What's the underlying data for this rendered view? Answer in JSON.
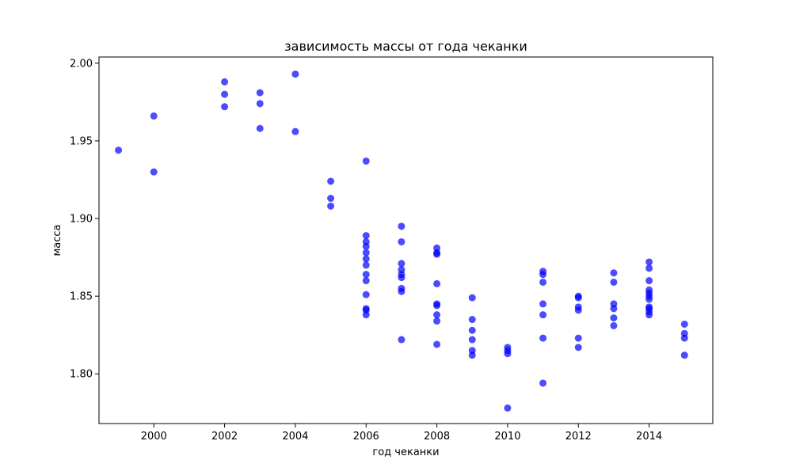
{
  "chart_data": {
    "type": "scatter",
    "title": "зависимость массы от года чеканки",
    "xlabel": "год чеканки",
    "ylabel": "масса",
    "xlim": [
      1998.45,
      2015.8
    ],
    "ylim": [
      1.768,
      2.004
    ],
    "grid": false,
    "xticks": [
      2000,
      2002,
      2004,
      2006,
      2008,
      2010,
      2012,
      2014
    ],
    "xtick_labels": [
      "2000",
      "2002",
      "2004",
      "2006",
      "2008",
      "2010",
      "2012",
      "2014"
    ],
    "yticks": [
      1.8,
      1.85,
      1.9,
      1.95,
      2.0
    ],
    "ytick_labels": [
      "1.80",
      "1.85",
      "1.90",
      "1.95",
      "2.00"
    ],
    "point_color": "#0000ff",
    "point_opacity": 0.7,
    "points": [
      {
        "x": 1999,
        "y": 1.944
      },
      {
        "x": 2000,
        "y": 1.966
      },
      {
        "x": 2000,
        "y": 1.93
      },
      {
        "x": 2002,
        "y": 1.988
      },
      {
        "x": 2002,
        "y": 1.98
      },
      {
        "x": 2002,
        "y": 1.972
      },
      {
        "x": 2003,
        "y": 1.981
      },
      {
        "x": 2003,
        "y": 1.974
      },
      {
        "x": 2003,
        "y": 1.958
      },
      {
        "x": 2004,
        "y": 1.993
      },
      {
        "x": 2004,
        "y": 1.956
      },
      {
        "x": 2005,
        "y": 1.924
      },
      {
        "x": 2005,
        "y": 1.913
      },
      {
        "x": 2005,
        "y": 1.908
      },
      {
        "x": 2006,
        "y": 1.937
      },
      {
        "x": 2006,
        "y": 1.889
      },
      {
        "x": 2006,
        "y": 1.885
      },
      {
        "x": 2006,
        "y": 1.882
      },
      {
        "x": 2006,
        "y": 1.878
      },
      {
        "x": 2006,
        "y": 1.874
      },
      {
        "x": 2006,
        "y": 1.87
      },
      {
        "x": 2006,
        "y": 1.864
      },
      {
        "x": 2006,
        "y": 1.86
      },
      {
        "x": 2006,
        "y": 1.851
      },
      {
        "x": 2006,
        "y": 1.842
      },
      {
        "x": 2006,
        "y": 1.841
      },
      {
        "x": 2006,
        "y": 1.838
      },
      {
        "x": 2007,
        "y": 1.895
      },
      {
        "x": 2007,
        "y": 1.885
      },
      {
        "x": 2007,
        "y": 1.871
      },
      {
        "x": 2007,
        "y": 1.867
      },
      {
        "x": 2007,
        "y": 1.864
      },
      {
        "x": 2007,
        "y": 1.862
      },
      {
        "x": 2007,
        "y": 1.855
      },
      {
        "x": 2007,
        "y": 1.853
      },
      {
        "x": 2007,
        "y": 1.822
      },
      {
        "x": 2008,
        "y": 1.881
      },
      {
        "x": 2008,
        "y": 1.878
      },
      {
        "x": 2008,
        "y": 1.877
      },
      {
        "x": 2008,
        "y": 1.858
      },
      {
        "x": 2008,
        "y": 1.845
      },
      {
        "x": 2008,
        "y": 1.844
      },
      {
        "x": 2008,
        "y": 1.838
      },
      {
        "x": 2008,
        "y": 1.834
      },
      {
        "x": 2008,
        "y": 1.819
      },
      {
        "x": 2009,
        "y": 1.849
      },
      {
        "x": 2009,
        "y": 1.835
      },
      {
        "x": 2009,
        "y": 1.828
      },
      {
        "x": 2009,
        "y": 1.822
      },
      {
        "x": 2009,
        "y": 1.815
      },
      {
        "x": 2009,
        "y": 1.812
      },
      {
        "x": 2010,
        "y": 1.817
      },
      {
        "x": 2010,
        "y": 1.815
      },
      {
        "x": 2010,
        "y": 1.813
      },
      {
        "x": 2010,
        "y": 1.778
      },
      {
        "x": 2011,
        "y": 1.866
      },
      {
        "x": 2011,
        "y": 1.864
      },
      {
        "x": 2011,
        "y": 1.859
      },
      {
        "x": 2011,
        "y": 1.845
      },
      {
        "x": 2011,
        "y": 1.838
      },
      {
        "x": 2011,
        "y": 1.823
      },
      {
        "x": 2011,
        "y": 1.794
      },
      {
        "x": 2012,
        "y": 1.85
      },
      {
        "x": 2012,
        "y": 1.849
      },
      {
        "x": 2012,
        "y": 1.843
      },
      {
        "x": 2012,
        "y": 1.841
      },
      {
        "x": 2012,
        "y": 1.823
      },
      {
        "x": 2012,
        "y": 1.817
      },
      {
        "x": 2013,
        "y": 1.865
      },
      {
        "x": 2013,
        "y": 1.859
      },
      {
        "x": 2013,
        "y": 1.845
      },
      {
        "x": 2013,
        "y": 1.842
      },
      {
        "x": 2013,
        "y": 1.836
      },
      {
        "x": 2013,
        "y": 1.831
      },
      {
        "x": 2014,
        "y": 1.872
      },
      {
        "x": 2014,
        "y": 1.868
      },
      {
        "x": 2014,
        "y": 1.86
      },
      {
        "x": 2014,
        "y": 1.854
      },
      {
        "x": 2014,
        "y": 1.852
      },
      {
        "x": 2014,
        "y": 1.85
      },
      {
        "x": 2014,
        "y": 1.848
      },
      {
        "x": 2014,
        "y": 1.843
      },
      {
        "x": 2014,
        "y": 1.842
      },
      {
        "x": 2014,
        "y": 1.84
      },
      {
        "x": 2014,
        "y": 1.838
      },
      {
        "x": 2015,
        "y": 1.832
      },
      {
        "x": 2015,
        "y": 1.826
      },
      {
        "x": 2015,
        "y": 1.823
      },
      {
        "x": 2015,
        "y": 1.812
      }
    ]
  }
}
